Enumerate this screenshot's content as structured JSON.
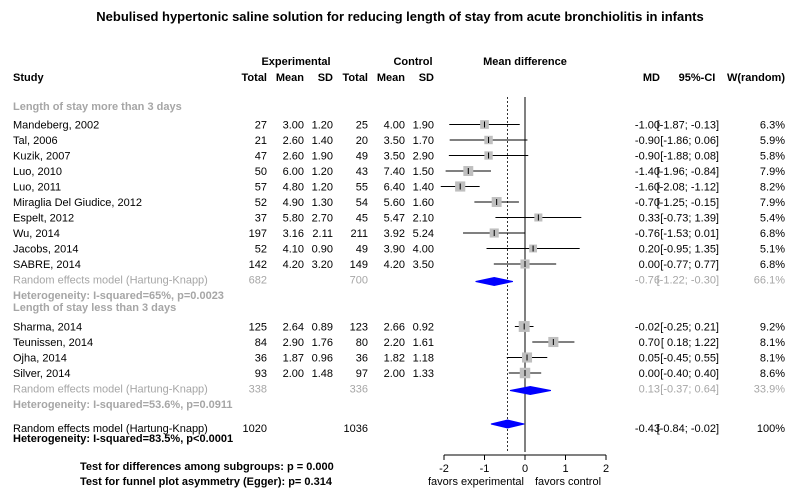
{
  "chart_data": {
    "type": "forest",
    "title": "Nebulised hypertonic saline solution for reducing length of stay from acute bronchiolitis in infants",
    "header": {
      "experimental": "Experimental",
      "control": "Control",
      "effect": "Mean difference",
      "study": "Study",
      "total": "Total",
      "mean": "Mean",
      "sd": "SD",
      "md": "MD",
      "ci": "95%-CI",
      "weight": "W(random)"
    },
    "subgroups": [
      {
        "label": "Length of stay more than 3 days",
        "studies": [
          {
            "study": "Mandeberg, 2002",
            "e_total": "27",
            "e_mean": "3.00",
            "e_sd": "1.20",
            "c_total": "25",
            "c_mean": "4.00",
            "c_sd": "1.90",
            "md": -1.0,
            "lower": -1.87,
            "upper": -0.13,
            "md_text": "-1.00",
            "ci_text": "[-1.87; -0.13]",
            "weight": "6.3%"
          },
          {
            "study": "Tal, 2006",
            "e_total": "21",
            "e_mean": "2.60",
            "e_sd": "1.40",
            "c_total": "20",
            "c_mean": "3.50",
            "c_sd": "1.70",
            "md": -0.9,
            "lower": -1.86,
            "upper": 0.06,
            "md_text": "-0.90",
            "ci_text": "[-1.86; 0.06]",
            "weight": "5.9%"
          },
          {
            "study": "Kuzik, 2007",
            "e_total": "47",
            "e_mean": "2.60",
            "e_sd": "1.90",
            "c_total": "49",
            "c_mean": "3.50",
            "c_sd": "2.90",
            "md": -0.9,
            "lower": -1.88,
            "upper": 0.08,
            "md_text": "-0.90",
            "ci_text": "[-1.88; 0.08]",
            "weight": "5.8%"
          },
          {
            "study": "Luo, 2010",
            "e_total": "50",
            "e_mean": "6.00",
            "e_sd": "1.20",
            "c_total": "43",
            "c_mean": "7.40",
            "c_sd": "1.50",
            "md": -1.4,
            "lower": -1.96,
            "upper": -0.84,
            "md_text": "-1.40",
            "ci_text": "[-1.96; -0.84]",
            "weight": "7.9%"
          },
          {
            "study": "Luo, 2011",
            "e_total": "57",
            "e_mean": "4.80",
            "e_sd": "1.20",
            "c_total": "55",
            "c_mean": "6.40",
            "c_sd": "1.40",
            "md": -1.6,
            "lower": -2.08,
            "upper": -1.12,
            "md_text": "-1.60",
            "ci_text": "[-2.08; -1.12]",
            "weight": "8.2%"
          },
          {
            "study": "Miraglia Del Giudice, 2012",
            "e_total": "52",
            "e_mean": "4.90",
            "e_sd": "1.30",
            "c_total": "54",
            "c_mean": "5.60",
            "c_sd": "1.60",
            "md": -0.7,
            "lower": -1.25,
            "upper": -0.15,
            "md_text": "-0.70",
            "ci_text": "[-1.25; -0.15]",
            "weight": "7.9%"
          },
          {
            "study": "Espelt, 2012",
            "e_total": "37",
            "e_mean": "5.80",
            "e_sd": "2.70",
            "c_total": "45",
            "c_mean": "5.47",
            "c_sd": "2.10",
            "md": 0.33,
            "lower": -0.73,
            "upper": 1.39,
            "md_text": "0.33",
            "ci_text": "[-0.73; 1.39]",
            "weight": "5.4%"
          },
          {
            "study": "Wu, 2014",
            "e_total": "197",
            "e_mean": "3.16",
            "e_sd": "2.11",
            "c_total": "211",
            "c_mean": "3.92",
            "c_sd": "5.24",
            "md": -0.76,
            "lower": -1.53,
            "upper": 0.01,
            "md_text": "-0.76",
            "ci_text": "[-1.53; 0.01]",
            "weight": "6.8%"
          },
          {
            "study": "Jacobs, 2014",
            "e_total": "52",
            "e_mean": "4.10",
            "e_sd": "0.90",
            "c_total": "49",
            "c_mean": "3.90",
            "c_sd": "4.00",
            "md": 0.2,
            "lower": -0.95,
            "upper": 1.35,
            "md_text": "0.20",
            "ci_text": "[-0.95; 1.35]",
            "weight": "5.1%"
          },
          {
            "study": "SABRE, 2014",
            "e_total": "142",
            "e_mean": "4.20",
            "e_sd": "3.20",
            "c_total": "149",
            "c_mean": "4.20",
            "c_sd": "3.50",
            "md": 0.0,
            "lower": -0.77,
            "upper": 0.77,
            "md_text": "0.00",
            "ci_text": "[-0.77; 0.77]",
            "weight": "6.8%"
          }
        ],
        "pooled": {
          "label": "Random effects model  (Hartung-Knapp)",
          "e_total": "682",
          "c_total": "700",
          "md": -0.76,
          "lower": -1.22,
          "upper": -0.3,
          "md_text": "-0.76",
          "ci_text": "[-1.22; -0.30]",
          "weight": "66.1%"
        },
        "heterogeneity": "Heterogeneity: I-squared=65%, p=0.0023"
      },
      {
        "label": "Length of stay less than 3 days",
        "studies": [
          {
            "study": "Sharma, 2014",
            "e_total": "125",
            "e_mean": "2.64",
            "e_sd": "0.89",
            "c_total": "123",
            "c_mean": "2.66",
            "c_sd": "0.92",
            "md": -0.02,
            "lower": -0.25,
            "upper": 0.21,
            "md_text": "-0.02",
            "ci_text": "[-0.25; 0.21]",
            "weight": "9.2%"
          },
          {
            "study": "Teunissen, 2014",
            "e_total": "84",
            "e_mean": "2.90",
            "e_sd": "1.76",
            "c_total": "80",
            "c_mean": "2.20",
            "c_sd": "1.61",
            "md": 0.7,
            "lower": 0.18,
            "upper": 1.22,
            "md_text": "0.70",
            "ci_text": "[ 0.18; 1.22]",
            "weight": "8.1%"
          },
          {
            "study": "Ojha, 2014",
            "e_total": "36",
            "e_mean": "1.87",
            "e_sd": "0.96",
            "c_total": "36",
            "c_mean": "1.82",
            "c_sd": "1.18",
            "md": 0.05,
            "lower": -0.45,
            "upper": 0.55,
            "md_text": "0.05",
            "ci_text": "[-0.45; 0.55]",
            "weight": "8.1%"
          },
          {
            "study": "Silver, 2014",
            "e_total": "93",
            "e_mean": "2.00",
            "e_sd": "1.48",
            "c_total": "97",
            "c_mean": "2.00",
            "c_sd": "1.33",
            "md": 0.0,
            "lower": -0.4,
            "upper": 0.4,
            "md_text": "0.00",
            "ci_text": "[-0.40; 0.40]",
            "weight": "8.6%"
          }
        ],
        "pooled": {
          "label": "Random effects model  (Hartung-Knapp)",
          "e_total": "338",
          "c_total": "336",
          "md": 0.13,
          "lower": -0.37,
          "upper": 0.64,
          "md_text": "0.13",
          "ci_text": "[-0.37; 0.64]",
          "weight": "33.9%"
        },
        "heterogeneity": "Heterogeneity: I-squared=53.6%, p=0.0911"
      }
    ],
    "overall": {
      "label": "Random effects model  (Hartung-Knapp)",
      "e_total": "1020",
      "c_total": "1036",
      "md": -0.43,
      "lower": -0.84,
      "upper": -0.02,
      "md_text": "-0.43",
      "ci_text": "[-0.84; -0.02]",
      "weight": "100%"
    },
    "overall_heterogeneity": "Heterogeneity: I-squared=83.5%, p<0.0001",
    "tests": [
      "Test for differences among subgroups: p = 0.000",
      "Test for funnel plot asymmetry (Egger): p= 0.314"
    ],
    "x_axis": {
      "ticks": [
        -2,
        -1,
        0,
        1,
        2
      ],
      "tick_labels": [
        "-2",
        "-1",
        "0",
        "1",
        "2"
      ],
      "xlim": [
        -2,
        2
      ]
    },
    "favors_left": "favors experimental",
    "favors_right": "favors control",
    "colors": {
      "diamond": "#0000ff",
      "square": "#bfbfbf",
      "subgroup_text": "#a6a6a6",
      "line": "#000000",
      "grid": "#000000"
    }
  }
}
